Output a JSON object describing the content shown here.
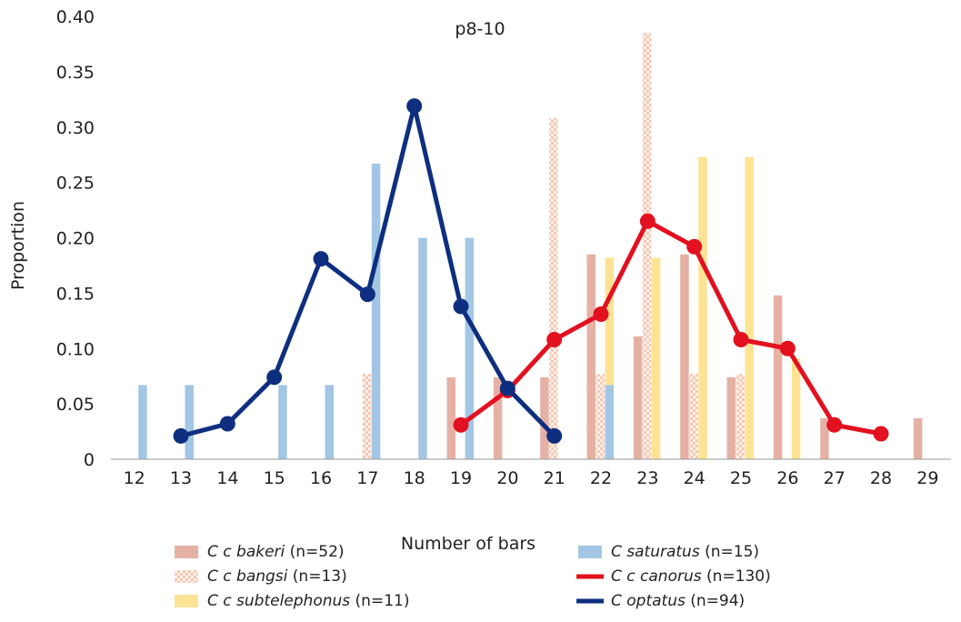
{
  "chart_data": {
    "type": "bar",
    "title": "p8-10",
    "xlabel": "Number of bars",
    "ylabel": "Proportion",
    "ylim": [
      0,
      0.4
    ],
    "yticks": [
      "0",
      "0.05",
      "0.10",
      "0.15",
      "0.20",
      "0.25",
      "0.30",
      "0.35",
      "0.40"
    ],
    "categories": [
      "12",
      "13",
      "14",
      "15",
      "16",
      "17",
      "18",
      "19",
      "20",
      "21",
      "22",
      "23",
      "24",
      "25",
      "26",
      "27",
      "28",
      "29"
    ],
    "grid": false,
    "legend_position": "bottom",
    "bar_series": [
      {
        "name_italic": "C c bakeri",
        "name_suffix": " (n=52)",
        "color": "#e6b1a5",
        "pattern": "solid",
        "values": [
          0,
          0,
          0,
          0,
          0,
          0,
          0,
          0.074,
          0.074,
          0.074,
          0.185,
          0.111,
          0.185,
          0.074,
          0.148,
          0.037,
          0,
          0.037
        ]
      },
      {
        "name_italic": "C c bangsi",
        "name_suffix": " (n=13)",
        "color": "#f5c8b4",
        "pattern": "checker",
        "values": [
          0,
          0,
          0,
          0,
          0,
          0.077,
          0,
          0,
          0,
          0.308,
          0.077,
          0.385,
          0.077,
          0.077,
          0,
          0,
          0,
          0
        ]
      },
      {
        "name_italic": "C c subtelephonus",
        "name_suffix": " (n=11)",
        "color": "#fde394",
        "pattern": "solid",
        "values": [
          0,
          0,
          0,
          0,
          0,
          0,
          0,
          0,
          0,
          0,
          0.182,
          0.182,
          0.273,
          0.273,
          0.091,
          0,
          0,
          0
        ]
      },
      {
        "name_italic": "C saturatus",
        "name_suffix": " (n=15)",
        "color": "#a3c6e4",
        "pattern": "solid",
        "values": [
          0.067,
          0.067,
          0,
          0.067,
          0.067,
          0.267,
          0.2,
          0.2,
          0,
          0,
          0.067,
          0,
          0,
          0,
          0,
          0,
          0,
          0
        ]
      }
    ],
    "line_series": [
      {
        "name_italic": "C c canorus",
        "name_suffix": " (n=130)",
        "color": "#e3101f",
        "points": [
          [
            19,
            0.031
          ],
          [
            20,
            0.062
          ],
          [
            21,
            0.108
          ],
          [
            22,
            0.131
          ],
          [
            23,
            0.215
          ],
          [
            24,
            0.192
          ],
          [
            25,
            0.108
          ],
          [
            26,
            0.1
          ],
          [
            27,
            0.031
          ],
          [
            28,
            0.023
          ]
        ]
      },
      {
        "name_italic": "C optatus",
        "name_suffix": " (n=94)",
        "color": "#0e2f7f",
        "points": [
          [
            13,
            0.021
          ],
          [
            14,
            0.032
          ],
          [
            15,
            0.074
          ],
          [
            16,
            0.181
          ],
          [
            17,
            0.149
          ],
          [
            18,
            0.319
          ],
          [
            19,
            0.138
          ],
          [
            20,
            0.064
          ],
          [
            21,
            0.021
          ]
        ]
      }
    ]
  }
}
